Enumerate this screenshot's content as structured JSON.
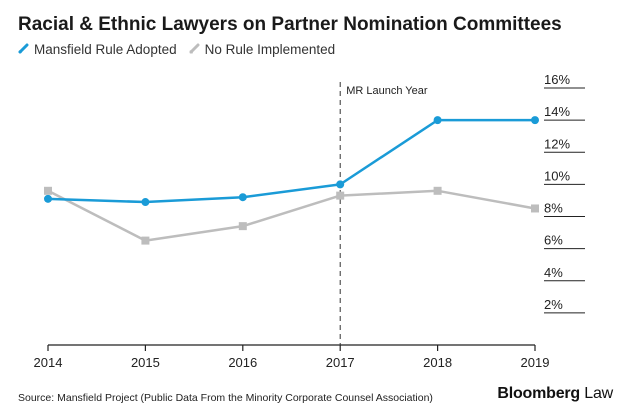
{
  "title": "Racial & Ethnic Lawyers on Partner Nomination Committees",
  "legend": {
    "items": [
      {
        "label": "Mansfield Rule Adopted",
        "color": "#1a9bd7",
        "icon": "pen-line-icon"
      },
      {
        "label": "No Rule Implemented",
        "color": "#bdbdbd",
        "icon": "pen-line-icon"
      }
    ]
  },
  "annotation": {
    "label": "MR Launch Year",
    "x": 2017
  },
  "source": "Source:  Mansfield Project (Public Data From the Minority Corporate Counsel Association)",
  "brand": {
    "primary": "Bloomberg",
    "secondary": " Law"
  },
  "chart_data": {
    "type": "line",
    "x": [
      2014,
      2015,
      2016,
      2017,
      2018,
      2019
    ],
    "x_tick_labels": [
      "2014",
      "2015",
      "2016",
      "2017",
      "2018",
      "2019"
    ],
    "y_tick_values": [
      2,
      4,
      6,
      8,
      10,
      12,
      14,
      16
    ],
    "y_tick_labels": [
      "2%",
      "4%",
      "6%",
      "8%",
      "10%",
      "12%",
      "14%",
      "16%"
    ],
    "ylim": [
      0,
      16
    ],
    "y_axis_side": "right",
    "series": [
      {
        "name": "Mansfield Rule Adopted",
        "color": "#1a9bd7",
        "marker": "circle",
        "values": [
          9.1,
          8.9,
          9.2,
          10.0,
          14.0,
          14.0
        ]
      },
      {
        "name": "No Rule Implemented",
        "color": "#bdbdbd",
        "marker": "square",
        "values": [
          9.6,
          6.5,
          7.4,
          9.3,
          9.6,
          8.5
        ]
      }
    ]
  }
}
